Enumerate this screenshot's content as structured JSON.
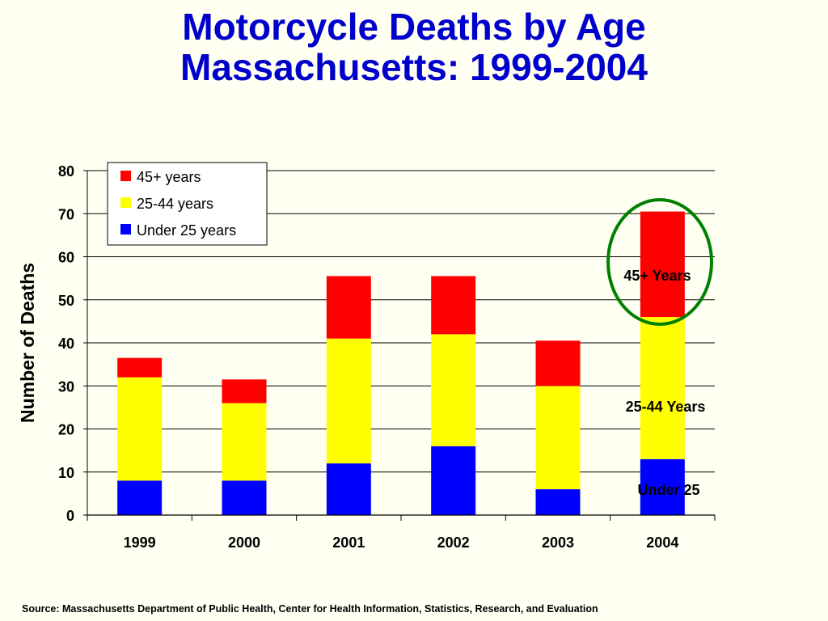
{
  "title_line1": "Motorcycle Deaths by Age",
  "title_line2": "Massachusetts: 1999-2004",
  "source": "Source:  Massachusetts Department of Public Health, Center for Health Information, Statistics, Research, and Evaluation",
  "colors": {
    "title": "#0000cc",
    "under25": "#0000ff",
    "age25_44": "#ffff00",
    "age45plus": "#ff0000",
    "circle": "#008000",
    "background": "#fffff2"
  },
  "chart_data": {
    "type": "bar",
    "stacked": true,
    "categories": [
      "1999",
      "2000",
      "2001",
      "2002",
      "2003",
      "2004"
    ],
    "series": [
      {
        "name": "Under 25 years",
        "values": [
          8,
          8,
          12,
          16,
          6,
          13
        ]
      },
      {
        "name": "25-44 years",
        "values": [
          24,
          18,
          29,
          26,
          24,
          33
        ]
      },
      {
        "name": "45+ years",
        "values": [
          4.5,
          5.5,
          14.5,
          13.5,
          10.5,
          24.5
        ]
      }
    ],
    "ylabel": "Number of Deaths",
    "xlabel": "",
    "ylim": [
      0,
      80
    ],
    "yticks": [
      "0",
      "10",
      "20",
      "30",
      "40",
      "50",
      "60",
      "70",
      "80"
    ],
    "grid": true,
    "legend_position": "top-left",
    "legend": [
      "45+ years",
      "25-44 years",
      "Under 25 years"
    ],
    "annotations": [
      "45+ Years",
      "25-44 Years",
      "Under 25"
    ]
  }
}
